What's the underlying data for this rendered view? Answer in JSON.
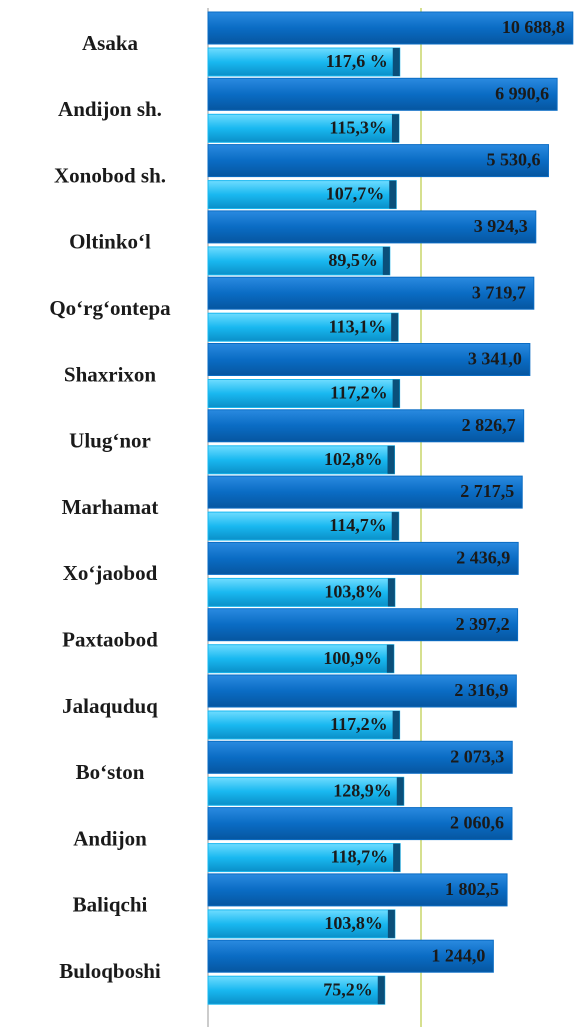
{
  "chart_data": {
    "type": "bar",
    "categories": [
      "Asaka",
      "Andijon sh.",
      "Xonobod sh.",
      "Oltinko‘l",
      "Qo‘rg‘ontepa",
      "Shaxrixon",
      "Ulug‘nor",
      "Marhamat",
      "Xo‘jaobod",
      "Paxtaobod",
      "Jalaquduq",
      "Bo‘ston",
      "Andijon",
      "Baliqchi",
      "Buloqboshi"
    ],
    "series": [
      {
        "color": "#0a6cc4",
        "values": [
          10688.8,
          6990.6,
          5530.6,
          3924.3,
          3719.7,
          3341.0,
          2826.7,
          2717.5,
          2436.9,
          2397.2,
          2316.9,
          2073.3,
          2060.6,
          1802.5,
          1244.0
        ],
        "value_labels": [
          "10 688,8",
          "6 990,6",
          "5 530,6",
          "3 924,3",
          "3 719,7",
          "3 341,0",
          "2 826,7",
          "2 717,5",
          "2 436,9",
          "2 397,2",
          "2 316,9",
          "2 073,3",
          "2 060,6",
          "1 802,5",
          "1 244,0"
        ]
      },
      {
        "color": "#19b8f0",
        "axis": "x2",
        "values": [
          117.6,
          115.3,
          107.7,
          89.5,
          113.1,
          117.2,
          102.8,
          114.7,
          103.8,
          100.9,
          117.2,
          128.9,
          118.7,
          103.8,
          75.2
        ],
        "value_labels": [
          "117,6 %",
          "115,3%",
          "107,7%",
          "89,5%",
          "113,1%",
          "117,2%",
          "102,8%",
          "114,7%",
          "103,8%",
          "100,9%",
          "117,2%",
          "128,9%",
          "118,7%",
          "103,8%",
          "75,2%"
        ]
      }
    ],
    "xlim": [
      0.55,
      12300
    ],
    "xscale": "log",
    "x2lim": [
      -424,
      621
    ]
  }
}
